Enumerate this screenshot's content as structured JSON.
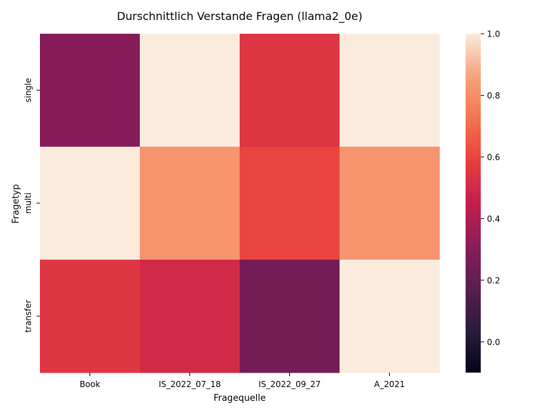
{
  "chart_data": {
    "type": "heatmap",
    "title": "Durschnittlich Verstande Fragen (llama2_0e)",
    "xlabel": "Fragequelle",
    "ylabel": "Fragetyp",
    "x_categories": [
      "Book",
      "IS_2022_07_18",
      "IS_2022_09_27",
      "A_2021"
    ],
    "y_categories": [
      "single",
      "multi",
      "transfer"
    ],
    "values": [
      [
        0.3,
        1.0,
        0.55,
        1.0
      ],
      [
        1.0,
        0.82,
        0.6,
        0.82
      ],
      [
        0.55,
        0.5,
        0.25,
        1.0
      ]
    ],
    "colorbar": {
      "range": [
        -0.1,
        1.0
      ],
      "ticks": [
        0.0,
        0.2,
        0.4,
        0.6,
        0.8,
        1.0
      ],
      "tick_labels": [
        "0.0",
        "0.2",
        "0.4",
        "0.6",
        "0.8",
        "1.0"
      ],
      "colormap": "rocket"
    }
  }
}
